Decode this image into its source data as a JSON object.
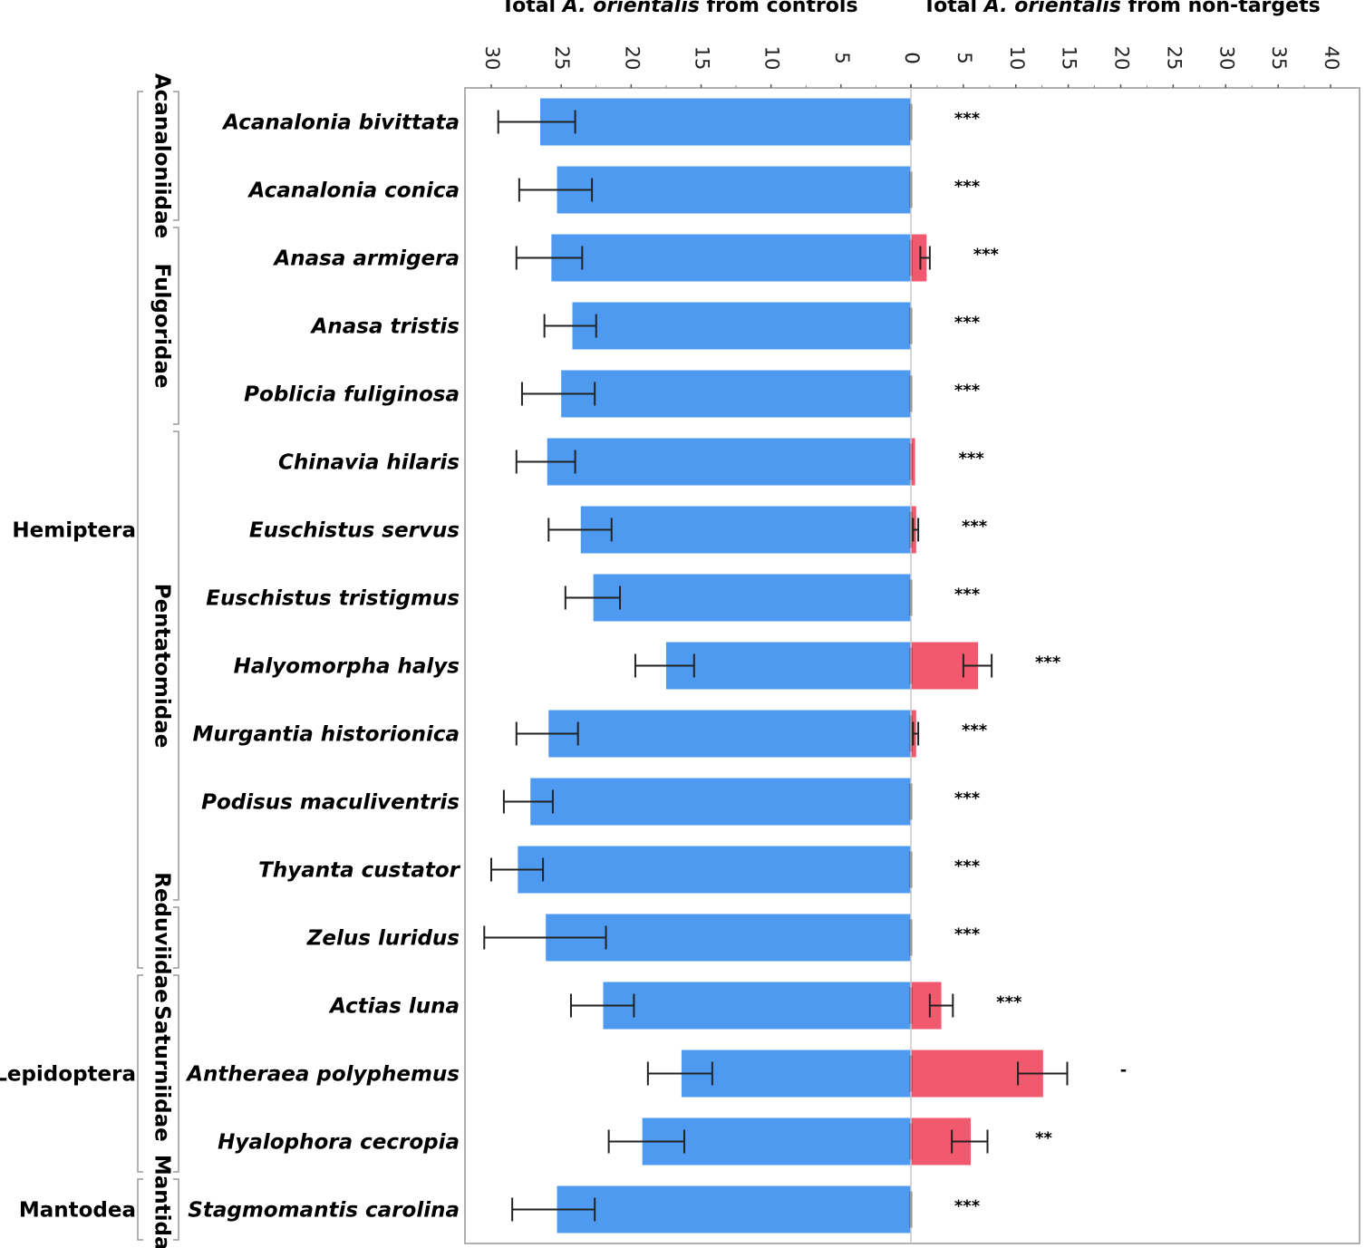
{
  "chart_data": {
    "type": "bar",
    "orientation": "horizontal-diverging",
    "title_left": {
      "pre": "Total ",
      "italic": "A. orientalis",
      "post": " from controls"
    },
    "title_right": {
      "pre": "Total ",
      "italic": "A. orientalis",
      "post": " from non-targets"
    },
    "controls_ticks": [
      30,
      25,
      20,
      15,
      10,
      5,
      0
    ],
    "nontargets_ticks": [
      0,
      5,
      10,
      15,
      20,
      25,
      30,
      35,
      40
    ],
    "controls_axis_max": 32,
    "nontargets_axis_max": 42,
    "colors": {
      "controls": "#4e9af1",
      "nontargets": "#f0596e"
    },
    "species": [
      {
        "name": "Acanalonia bivittata",
        "control": 26.5,
        "control_err": [
          24,
          29.5
        ],
        "nontarget": 0,
        "nontarget_err": null,
        "sig": "***"
      },
      {
        "name": "Acanalonia conica",
        "control": 25.3,
        "control_err": [
          22.8,
          28
        ],
        "nontarget": 0,
        "nontarget_err": null,
        "sig": "***"
      },
      {
        "name": "Anasa armigera",
        "control": 25.7,
        "control_err": [
          23.5,
          28.2
        ],
        "nontarget": 1.5,
        "nontarget_err": [
          0.9,
          1.8
        ],
        "sig": "***"
      },
      {
        "name": "Anasa tristis",
        "control": 24.2,
        "control_err": [
          22.5,
          26.2
        ],
        "nontarget": 0,
        "nontarget_err": null,
        "sig": "***"
      },
      {
        "name": "Poblicia fuliginosa",
        "control": 25,
        "control_err": [
          22.6,
          27.8
        ],
        "nontarget": 0,
        "nontarget_err": null,
        "sig": "***"
      },
      {
        "name": "Chinavia hilaris",
        "control": 26,
        "control_err": [
          24,
          28.2
        ],
        "nontarget": 0.4,
        "nontarget_err": null,
        "sig": "***"
      },
      {
        "name": "Euschistus servus",
        "control": 23.6,
        "control_err": [
          21.4,
          25.9
        ],
        "nontarget": 0.5,
        "nontarget_err": [
          0.2,
          0.7
        ],
        "sig": "***"
      },
      {
        "name": "Euschistus tristigmus",
        "control": 22.7,
        "control_err": [
          20.8,
          24.7
        ],
        "nontarget": 0,
        "nontarget_err": null,
        "sig": "***"
      },
      {
        "name": "Halyomorpha halys",
        "control": 17.5,
        "control_err": [
          15.5,
          19.7
        ],
        "nontarget": 6.4,
        "nontarget_err": [
          5,
          7.7
        ],
        "sig": "***"
      },
      {
        "name": "Murgantia historionica",
        "control": 25.9,
        "control_err": [
          23.8,
          28.2
        ],
        "nontarget": 0.5,
        "nontarget_err": [
          0.2,
          0.7
        ],
        "sig": "***"
      },
      {
        "name": "Podisus maculiventris",
        "control": 27.2,
        "control_err": [
          25.6,
          29.1
        ],
        "nontarget": 0,
        "nontarget_err": null,
        "sig": "***"
      },
      {
        "name": "Thyanta custator",
        "control": 28.1,
        "control_err": [
          26.3,
          30
        ],
        "nontarget": 0,
        "nontarget_err": null,
        "sig": "***"
      },
      {
        "name": "Zelus luridus",
        "control": 26.1,
        "control_err": [
          21.8,
          30.5
        ],
        "nontarget": 0,
        "nontarget_err": null,
        "sig": "***"
      },
      {
        "name": "Actias luna",
        "control": 22,
        "control_err": [
          19.8,
          24.3
        ],
        "nontarget": 2.9,
        "nontarget_err": [
          1.8,
          4
        ],
        "sig": "***"
      },
      {
        "name": "Antheraea polyphemus",
        "control": 16.4,
        "control_err": [
          14.2,
          18.8
        ],
        "nontarget": 12.6,
        "nontarget_err": [
          10.2,
          14.9
        ],
        "sig": "-"
      },
      {
        "name": "Hyalophora cecropia",
        "control": 19.2,
        "control_err": [
          16.2,
          21.6
        ],
        "nontarget": 5.7,
        "nontarget_err": [
          3.9,
          7.3
        ],
        "sig": "**"
      },
      {
        "name": "Stagmomantis carolina",
        "control": 25.3,
        "control_err": [
          22.6,
          28.5
        ],
        "nontarget": 0,
        "nontarget_err": null,
        "sig": "***"
      }
    ],
    "families": [
      {
        "name": "Acanaloniidae",
        "start": 0,
        "end": 1
      },
      {
        "name": "Fulgoridae",
        "start": 2,
        "end": 4
      },
      {
        "name": "Pentatomidae",
        "start": 5,
        "end": 11
      },
      {
        "name": "Reduviidae",
        "start": 12,
        "end": 12
      },
      {
        "name": "Saturniidae",
        "start": 13,
        "end": 15
      },
      {
        "name": "Mantidae",
        "start": 16,
        "end": 16
      }
    ],
    "orders": [
      {
        "name": "Hemiptera",
        "start": 0,
        "end": 12
      },
      {
        "name": "Lepidoptera",
        "start": 13,
        "end": 15
      },
      {
        "name": "Mantodea",
        "start": 16,
        "end": 16
      }
    ]
  }
}
